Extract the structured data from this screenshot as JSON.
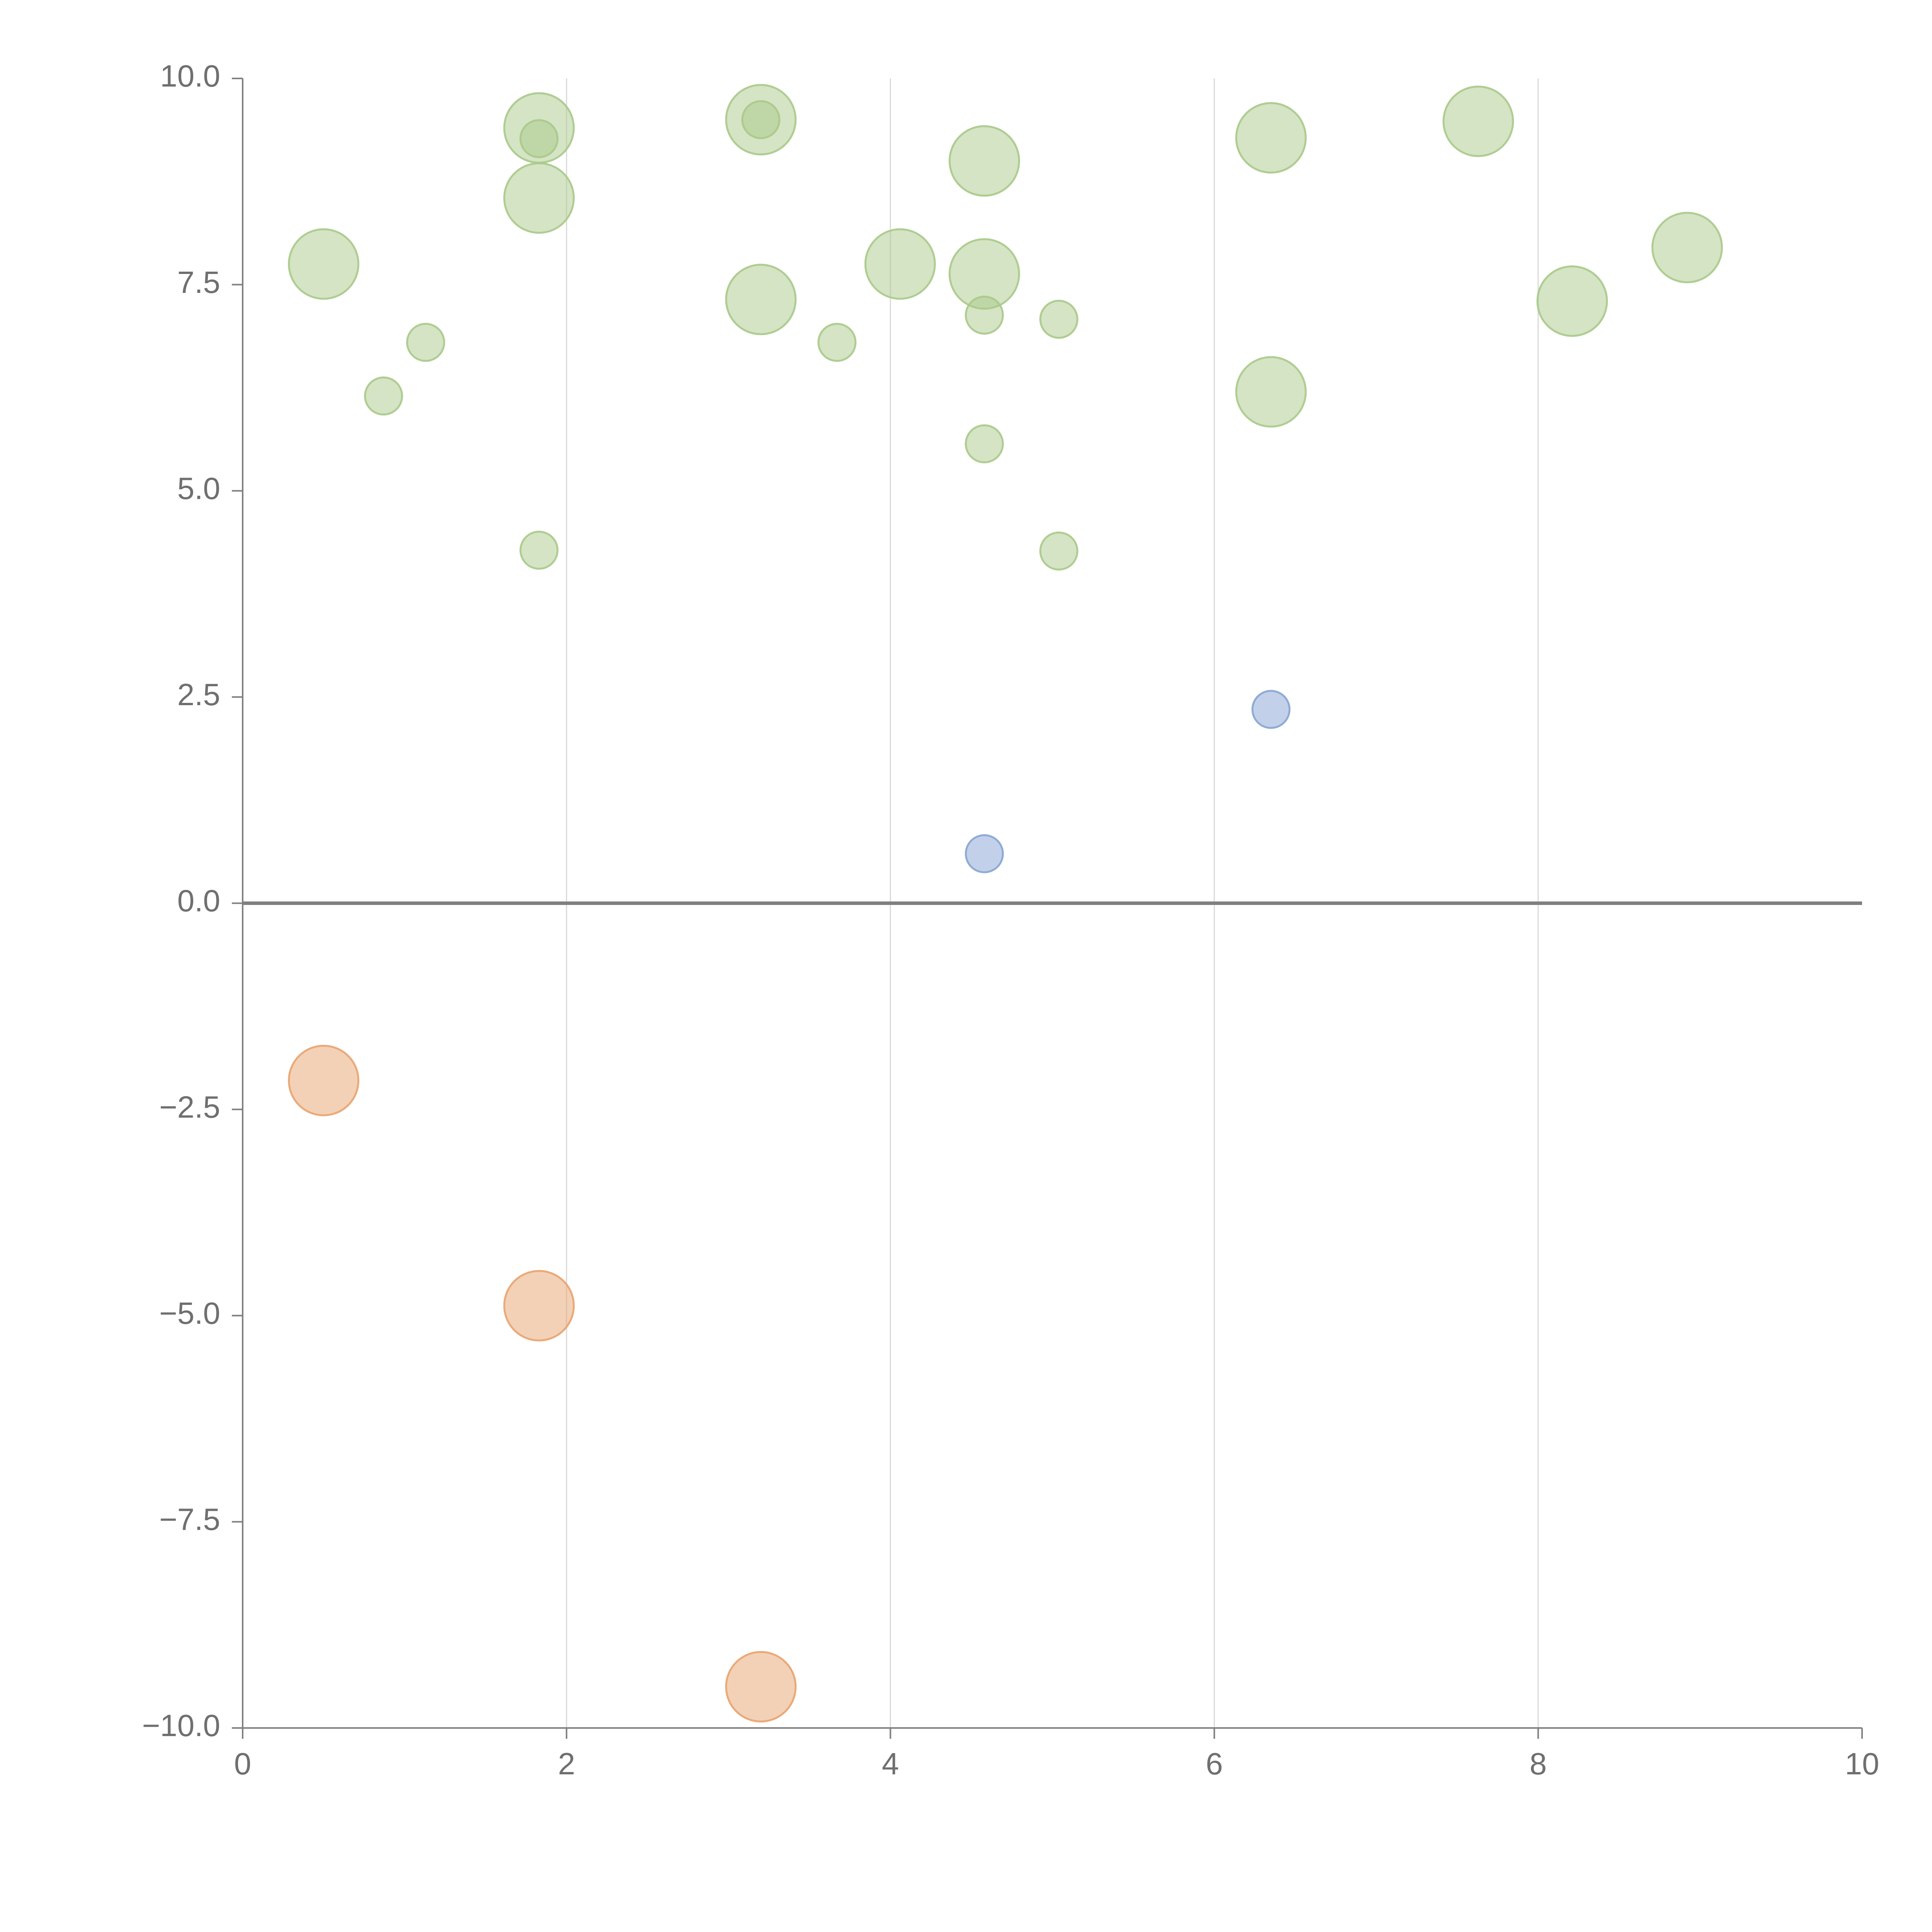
{
  "chart_data": {
    "type": "scatter",
    "title": "",
    "xlabel": "",
    "ylabel": "",
    "xlim": [
      0,
      10
    ],
    "ylim": [
      -10,
      10
    ],
    "x_ticks": [
      "0",
      "2",
      "4",
      "6",
      "8",
      "10"
    ],
    "x_tick_values": [
      0,
      2,
      4,
      6,
      8,
      10
    ],
    "y_ticks": [
      "10.0",
      "7.5",
      "5.0",
      "2.5",
      "0.0",
      "−2.5",
      "−5.0",
      "−7.5",
      "−10.0"
    ],
    "y_tick_values": [
      10,
      7.5,
      5,
      2.5,
      0,
      -2.5,
      -5,
      -7.5,
      -10
    ],
    "vertical_gridlines": [
      2,
      4,
      6,
      8
    ],
    "zero_line": 0,
    "colors": {
      "green": "#a9c98a",
      "blue": "#86a4d3",
      "orange": "#e8a36f",
      "axis": "#808080",
      "grid": "#d9d9d9",
      "zero_line": "#7f7f7f"
    },
    "series": [
      {
        "name": "green",
        "color": "#a9c98a",
        "points": [
          {
            "x": 0.5,
            "y": 7.75,
            "size": 3
          },
          {
            "x": 0.87,
            "y": 6.15,
            "size": 1
          },
          {
            "x": 1.13,
            "y": 6.8,
            "size": 1
          },
          {
            "x": 1.83,
            "y": 9.4,
            "size": 3
          },
          {
            "x": 1.83,
            "y": 9.27,
            "size": 1
          },
          {
            "x": 1.83,
            "y": 8.55,
            "size": 3
          },
          {
            "x": 1.83,
            "y": 4.28,
            "size": 1
          },
          {
            "x": 3.2,
            "y": 9.5,
            "size": 3
          },
          {
            "x": 3.2,
            "y": 9.5,
            "size": 1
          },
          {
            "x": 3.2,
            "y": 7.32,
            "size": 3
          },
          {
            "x": 3.67,
            "y": 6.8,
            "size": 1
          },
          {
            "x": 4.06,
            "y": 7.75,
            "size": 3
          },
          {
            "x": 4.58,
            "y": 9.0,
            "size": 3
          },
          {
            "x": 4.58,
            "y": 7.63,
            "size": 3
          },
          {
            "x": 4.58,
            "y": 7.13,
            "size": 1
          },
          {
            "x": 4.58,
            "y": 5.57,
            "size": 1
          },
          {
            "x": 5.04,
            "y": 7.08,
            "size": 1
          },
          {
            "x": 5.04,
            "y": 4.27,
            "size": 1
          },
          {
            "x": 6.35,
            "y": 9.28,
            "size": 3
          },
          {
            "x": 6.35,
            "y": 6.2,
            "size": 3
          },
          {
            "x": 7.63,
            "y": 9.48,
            "size": 3
          },
          {
            "x": 8.21,
            "y": 7.3,
            "size": 3
          },
          {
            "x": 8.92,
            "y": 7.95,
            "size": 3
          }
        ]
      },
      {
        "name": "blue",
        "color": "#86a4d3",
        "points": [
          {
            "x": 4.58,
            "y": 0.6,
            "size": 1
          },
          {
            "x": 6.35,
            "y": 2.35,
            "size": 1
          }
        ]
      },
      {
        "name": "orange",
        "color": "#e8a36f",
        "points": [
          {
            "x": 0.5,
            "y": -2.15,
            "size": 3
          },
          {
            "x": 1.83,
            "y": -4.88,
            "size": 3
          },
          {
            "x": 3.2,
            "y": -9.5,
            "size": 3
          }
        ]
      }
    ]
  }
}
